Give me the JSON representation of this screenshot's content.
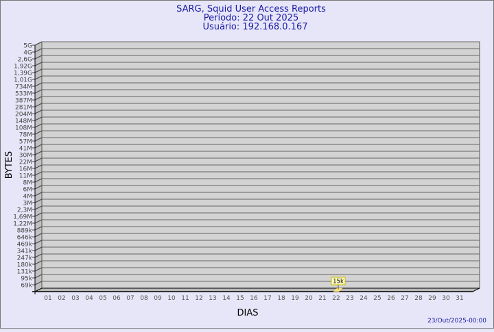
{
  "chart_data": {
    "type": "bar",
    "title": [
      "SARG, Squid User Access Reports",
      "Período: 22 Out 2025",
      "Usuário: 192.168.0.167"
    ],
    "xlabel": "DIAS",
    "ylabel": "BYTES",
    "categories": [
      "01",
      "02",
      "03",
      "04",
      "05",
      "06",
      "07",
      "08",
      "09",
      "10",
      "11",
      "12",
      "13",
      "14",
      "15",
      "16",
      "17",
      "18",
      "19",
      "20",
      "21",
      "22",
      "23",
      "24",
      "25",
      "26",
      "27",
      "28",
      "29",
      "30",
      "31"
    ],
    "y_tick_labels": [
      "5G",
      "4G",
      "2,6G",
      "1,92G",
      "1,39G",
      "1,01G",
      "734M",
      "533M",
      "387M",
      "281M",
      "204M",
      "148M",
      "108M",
      "78M",
      "57M",
      "41M",
      "30M",
      "22M",
      "16M",
      "11M",
      "8M",
      "6M",
      "4M",
      "3M",
      "2,3M",
      "1,69M",
      "1,22M",
      "889k",
      "646k",
      "469k",
      "341k",
      "247k",
      "180k",
      "131k",
      "95k",
      "69k"
    ],
    "y_scale": "non-linear",
    "values": [
      {
        "x": "22",
        "value": "15k"
      }
    ],
    "grid": true,
    "footer": "23/Out/2025-00:00",
    "colors": {
      "title": "#1a1aa6",
      "wall": "#d3d3d3",
      "side": "#c0c0c0",
      "bar": "#ffe680",
      "label_bg": "#ffffc0",
      "label_border": "#c8b400",
      "background": "#e6e6f8"
    }
  }
}
